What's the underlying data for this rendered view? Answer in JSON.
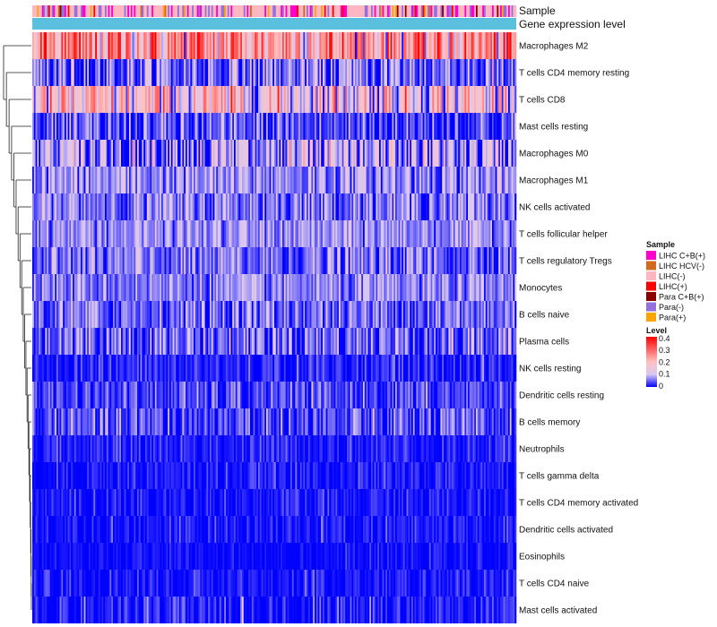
{
  "chart_data": {
    "type": "heatmap",
    "annotation_labels": [
      "Sample",
      "Gene expression level"
    ],
    "rows": [
      {
        "name": "Macrophages M2",
        "mean": 0.24,
        "sd": 0.1
      },
      {
        "name": "T cells CD4 memory resting",
        "mean": 0.05,
        "sd": 0.06
      },
      {
        "name": "T cells CD8",
        "mean": 0.16,
        "sd": 0.09
      },
      {
        "name": "Mast cells resting",
        "mean": 0.03,
        "sd": 0.05
      },
      {
        "name": "Macrophages M0",
        "mean": 0.07,
        "sd": 0.08
      },
      {
        "name": "Macrophages M1",
        "mean": 0.07,
        "sd": 0.04
      },
      {
        "name": "NK cells activated",
        "mean": 0.06,
        "sd": 0.04
      },
      {
        "name": "T cells follicular helper",
        "mean": 0.07,
        "sd": 0.03
      },
      {
        "name": "T cells regulatory  Tregs",
        "mean": 0.05,
        "sd": 0.04
      },
      {
        "name": "Monocytes",
        "mean": 0.06,
        "sd": 0.03
      },
      {
        "name": "B cells naive",
        "mean": 0.05,
        "sd": 0.04
      },
      {
        "name": "Plasma cells",
        "mean": 0.05,
        "sd": 0.05
      },
      {
        "name": "NK cells resting",
        "mean": 0.015,
        "sd": 0.025
      },
      {
        "name": "Dendritic cells resting",
        "mean": 0.03,
        "sd": 0.03
      },
      {
        "name": "B cells memory",
        "mean": 0.03,
        "sd": 0.04
      },
      {
        "name": "Neutrophils",
        "mean": 0.015,
        "sd": 0.02
      },
      {
        "name": "T cells gamma delta",
        "mean": 0.01,
        "sd": 0.02
      },
      {
        "name": "T cells CD4 memory activated",
        "mean": 0.008,
        "sd": 0.02
      },
      {
        "name": "Dendritic cells activated",
        "mean": 0.008,
        "sd": 0.02
      },
      {
        "name": "Eosinophils",
        "mean": 0.005,
        "sd": 0.012
      },
      {
        "name": "T cells CD4 naive",
        "mean": 0.008,
        "sd": 0.02
      },
      {
        "name": "Mast cells activated",
        "mean": 0.01,
        "sd": 0.03
      }
    ],
    "n_columns": 300,
    "color_scale": {
      "min": 0,
      "max": 0.4,
      "stops": [
        {
          "value": 0,
          "color": "#0000ff"
        },
        {
          "value": 0.1,
          "color": "#d9c8f0"
        },
        {
          "value": 0.2,
          "color": "#ffc2c2"
        },
        {
          "value": 0.4,
          "color": "#ff0000"
        }
      ]
    },
    "sample_groups": [
      {
        "label": "LIHC C+B(+)",
        "color": "#ff00cc",
        "weight": 0.2
      },
      {
        "label": "LIHC HCV(-)",
        "color": "#d2691e",
        "weight": 0.02
      },
      {
        "label": "LIHC(-)",
        "color": "#ffb6c1",
        "weight": 0.5
      },
      {
        "label": "LIHC(+)",
        "color": "#ff0000",
        "weight": 0.05
      },
      {
        "label": "Para C+B(+)",
        "color": "#8b0000",
        "weight": 0.02
      },
      {
        "label": "Para(-)",
        "color": "#9370db",
        "weight": 0.16
      },
      {
        "label": "Para(+)",
        "color": "#ffa500",
        "weight": 0.05
      }
    ],
    "gene_expression_color": "#5bc0de",
    "legend_sample_title": "Sample",
    "legend_level_title": "Level",
    "level_ticks": [
      "0.4",
      "0.3",
      "0.2",
      "0.1",
      "0"
    ]
  }
}
